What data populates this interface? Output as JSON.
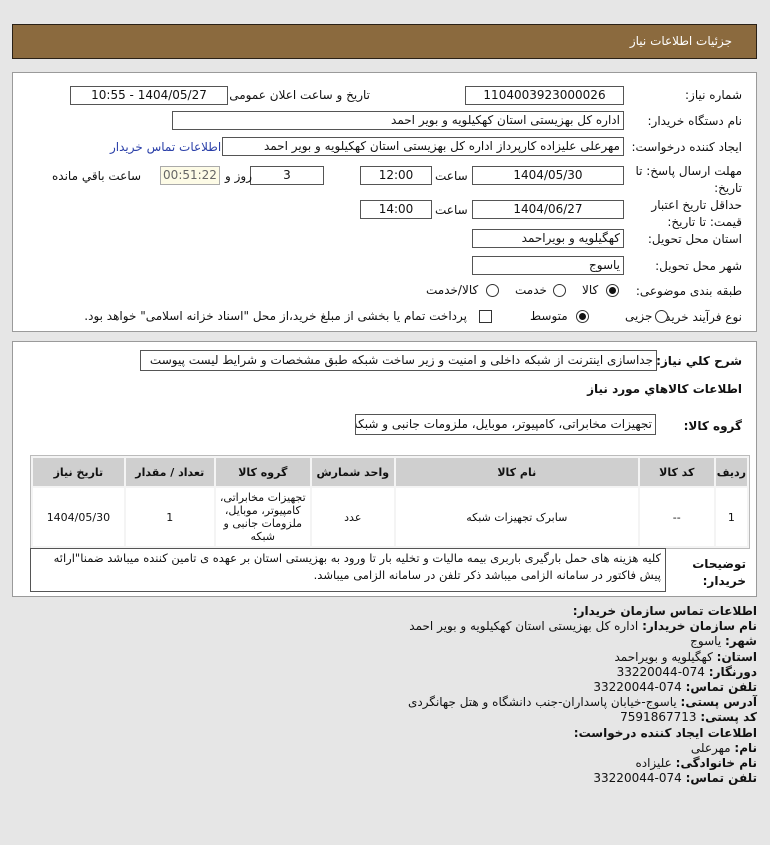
{
  "header": {
    "title": "جزئیات اطلاعات نیاز"
  },
  "form": {
    "need_number_label": "شماره نیاز:",
    "need_number": "1104003923000026",
    "announce_label": "تاریخ و ساعت اعلان عمومی:",
    "announce_value": "1404/05/27 - 10:55",
    "buyer_org_label": "نام دستگاه خریدار:",
    "buyer_org": "اداره کل بهزیستی استان کهکیلویه و بویر احمد",
    "creator_label": "ایجاد کننده درخواست:",
    "creator": "مهرعلی علیزاده کارپرداز اداره کل بهزیستی استان کهکیلویه و بویر احمد",
    "buyer_contact_link": "اطلاعات تماس خریدار",
    "deadline_label": "مهلت ارسال پاسخ: تا تاریخ:",
    "deadline_date": "1404/05/30",
    "time_label": "ساعت",
    "deadline_time": "12:00",
    "days": "3",
    "days_label": "روز و",
    "remaining": "00:51:22",
    "remaining_label": "ساعت باقي مانده",
    "validity_label": "حداقل تاریخ اعتبار قیمت: تا تاریخ:",
    "validity_date": "1404/06/27",
    "validity_time": "14:00",
    "province_label": "استان محل تحویل:",
    "province": "کهگیلویه و بویراحمد",
    "city_label": "شهر محل تحویل:",
    "city": "یاسوج",
    "category_label": "طبقه بندی موضوعی:",
    "category_options": [
      {
        "label": "کالا",
        "selected": true
      },
      {
        "label": "خدمت",
        "selected": false
      },
      {
        "label": "کالا/خدمت",
        "selected": false
      }
    ],
    "process_label": "نوع فرآیند خرید :",
    "process_options": [
      {
        "label": "جزیی",
        "selected": false
      },
      {
        "label": "متوسط",
        "selected": true
      }
    ],
    "treasury_checkbox": {
      "checked": false,
      "label": "پرداخت تمام یا بخشی از مبلغ خرید،از محل \"اسناد خزانه اسلامی\" خواهد بود."
    }
  },
  "needs": {
    "summary_label": "شرح کلي نیاز:",
    "summary": "جداسازی اینترنت از شبکه داخلی و امنیت و زیر ساخت شبکه طبق مشخصات و شرایط لیست پیوست",
    "items_title": "اطلاعات کالاهاي مورد نیاز",
    "group_label": "گروه کالا:",
    "group": "تجهیزات مخابراتی، کامپیوتر، موبایل، ملزومات جانبی و شبکه",
    "table": {
      "columns": [
        "ردیف",
        "کد کالا",
        "نام کالا",
        "واحد شمارش",
        "گروه کالا",
        "تعداد / مقدار",
        "تاریخ نیاز"
      ],
      "rows": [
        [
          "1",
          "--",
          "سابرک تجهیزات شبکه",
          "عدد",
          "تجهیزات مخابراتی، کامپیوتر، موبایل، ملزومات جانبی و شبکه",
          "1",
          "1404/05/30"
        ]
      ]
    },
    "buyer_notes_label": "توضیحات خریدار:",
    "buyer_notes": "کلیه هزینه های حمل بارگیری باربری بیمه مالیات و تخلیه بار تا ورود به بهزیستی استان بر عهده ی تامین کننده میباشد ضمنا\"ارائه پیش فاکتور در سامانه الزامی میباشد ذکر تلفن در سامانه الزامی میباشد."
  },
  "contact": {
    "title": "اطلاعات تماس سازمان خریدار:",
    "lines": [
      {
        "label": "نام سازمان خریدار:",
        "value": "اداره کل بهزیستی استان کهکیلویه و بویر احمد"
      },
      {
        "label": "شهر:",
        "value": "یاسوج"
      },
      {
        "label": "استان:",
        "value": "کهگیلویه و بویراحمد"
      },
      {
        "label": "دورنگار:",
        "value": "074-33220044"
      },
      {
        "label": "تلفن تماس:",
        "value": "074-33220044"
      },
      {
        "label": "آدرس پستی:",
        "value": "یاسوج-خیابان پاسداران-جنب دانشگاه و هتل جهانگردی"
      },
      {
        "label": "کد پستی:",
        "value": "7591867713"
      }
    ],
    "creator_title": "اطلاعات ایجاد کننده درخواست:",
    "creator_lines": [
      {
        "label": "نام:",
        "value": "مهرعلی"
      },
      {
        "label": "نام خانوادگی:",
        "value": "علیزاده"
      },
      {
        "label": "تلفن تماس:",
        "value": "074-33220044"
      }
    ]
  }
}
